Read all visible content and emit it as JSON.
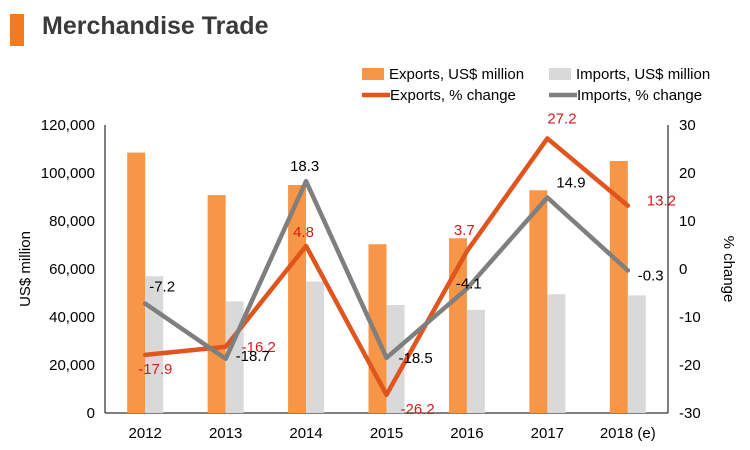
{
  "header": {
    "title": "Merchandise Trade"
  },
  "chart_data": {
    "type": "bar",
    "categories": [
      "2012",
      "2013",
      "2014",
      "2015",
      "2016",
      "2017",
      "2018 (e)"
    ],
    "series": [
      {
        "name": "Exports, US$ million",
        "kind": "bar",
        "axis": "left",
        "color": "#f79646",
        "values": [
          108500,
          90800,
          95000,
          70300,
          72800,
          92800,
          105000
        ]
      },
      {
        "name": "Imports, US$ million",
        "kind": "bar",
        "axis": "left",
        "color": "#d9d9d9",
        "values": [
          57000,
          46500,
          54800,
          45000,
          43000,
          49500,
          49000
        ]
      },
      {
        "name": "Exports, % change",
        "kind": "line",
        "axis": "right",
        "color": "#e0541e",
        "values": [
          -17.9,
          -16.2,
          4.8,
          -26.2,
          3.7,
          27.2,
          13.2
        ],
        "labels": [
          "-17.9",
          "-16.2",
          "4.8",
          "-26.2",
          "3.7",
          "27.2",
          "13.2"
        ],
        "label_color": "#d7191c"
      },
      {
        "name": "Imports, % change",
        "kind": "line",
        "axis": "right",
        "color": "#7f7f7f",
        "values": [
          -7.2,
          -18.7,
          18.3,
          -18.5,
          -4.1,
          14.9,
          -0.3
        ],
        "labels": [
          "-7.2",
          "-18.7",
          "18.3",
          "-18.5",
          "-4.1",
          "14.9",
          "-0.3"
        ],
        "label_color": "#000000"
      }
    ],
    "ylabel": "US$ million",
    "y2label": "% change",
    "ylim": [
      0,
      120000
    ],
    "y2lim": [
      -30,
      30
    ],
    "yticks": [
      "0",
      "20,000",
      "40,000",
      "60,000",
      "80,000",
      "100,000",
      "120,000"
    ],
    "y2ticks": [
      "-30",
      "-20",
      "-10",
      "0",
      "10",
      "20",
      "30"
    ],
    "legend_position": "top-right",
    "grid": false
  }
}
